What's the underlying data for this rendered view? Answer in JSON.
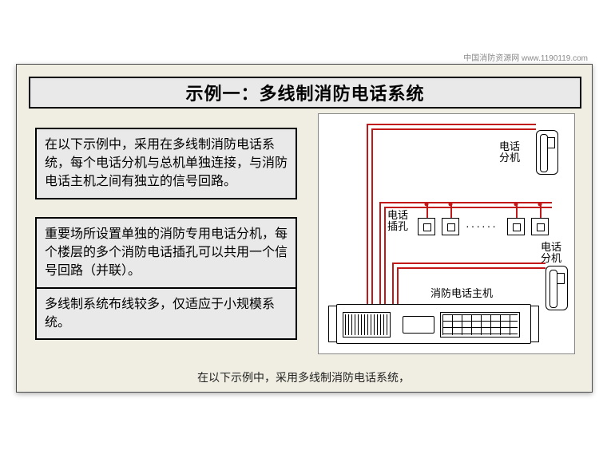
{
  "meta": {
    "watermark": "中国消防资源网 www.1190119.com"
  },
  "title": "示例一：多线制消防电话系统",
  "paragraphs": {
    "p1": "在以下示例中，采用在多线制消防电话系统，每个电话分机与总机单独连接，与消防电话主机之间有独立的信号回路。",
    "p2": "重要场所设置单独的消防专用电话分机，每个楼层的多个消防电话插孔可以共用一个信号回路（并联）。",
    "p3": "多线制系统布线较多，仅适应于小规模系统。"
  },
  "caption": "在以下示例中，采用多线制消防电话系统，",
  "diagram": {
    "labels": {
      "phone_ext_top": "电话\n分机",
      "phone_ext_bottom": "电话\n分机",
      "jack": "电话\n插孔",
      "host": "消防电话主机"
    },
    "colors": {
      "wire": "#c21818",
      "bg": "#ffffff",
      "stroke": "#000000"
    }
  }
}
